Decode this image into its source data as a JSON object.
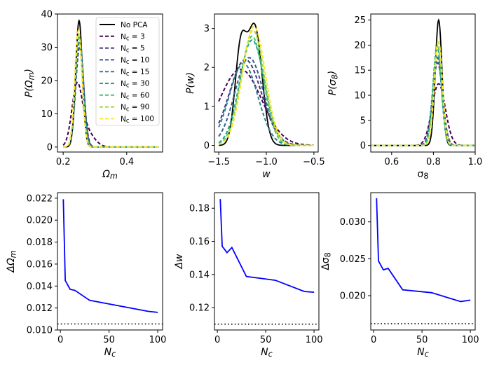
{
  "chart_data": [
    {
      "type": "line",
      "panel": "top-left",
      "xlabel": "Ω_{m}",
      "ylabel": "P(Ω_{m})",
      "xlim": [
        0.182,
        0.513
      ],
      "ylim": [
        -1.5,
        40
      ],
      "xticks": [
        0.2,
        0.4
      ],
      "yticks": [
        0,
        10,
        20,
        30,
        40
      ],
      "xtick_labels": [
        "0.2",
        "0.4"
      ],
      "ytick_labels": [
        "0",
        "10",
        "20",
        "30",
        "40"
      ],
      "x_range": [
        0.2,
        0.5
      ],
      "legend": {
        "placement": "top-right"
      },
      "series": [
        {
          "name": "No PCA",
          "color": "#000000",
          "style": "solid",
          "components": [
            {
              "mu": 0.25,
              "sigma": 0.0105,
              "amp": 38
            }
          ]
        },
        {
          "name": "N_{c} = 3",
          "color": "#440154",
          "style": "dashed",
          "components": [
            {
              "mu": 0.243,
              "sigma": 0.016,
              "amp": 16.5
            },
            {
              "mu": 0.27,
              "sigma": 0.025,
              "amp": 5
            }
          ]
        },
        {
          "name": "N_{c} = 5",
          "color": "#46327e",
          "style": "dashed",
          "components": [
            {
              "mu": 0.252,
              "sigma": 0.0128,
              "amp": 30
            }
          ]
        },
        {
          "name": "N_{c} = 10",
          "color": "#365c8d",
          "style": "dashed",
          "components": [
            {
              "mu": 0.252,
              "sigma": 0.0122,
              "amp": 32
            }
          ]
        },
        {
          "name": "N_{c} = 15",
          "color": "#277f8e",
          "style": "dashed",
          "components": [
            {
              "mu": 0.251,
              "sigma": 0.012,
              "amp": 33
            }
          ]
        },
        {
          "name": "N_{c} = 30",
          "color": "#1fa187",
          "style": "dashed",
          "components": [
            {
              "mu": 0.25,
              "sigma": 0.0118,
              "amp": 33
            }
          ]
        },
        {
          "name": "N_{c} = 60",
          "color": "#4ac16d",
          "style": "dashed",
          "components": [
            {
              "mu": 0.249,
              "sigma": 0.0116,
              "amp": 34
            }
          ]
        },
        {
          "name": "N_{c} = 90",
          "color": "#a0da39",
          "style": "dashed",
          "components": [
            {
              "mu": 0.249,
              "sigma": 0.0115,
              "amp": 34
            }
          ]
        },
        {
          "name": "N_{c} = 100",
          "color": "#fde725",
          "style": "dashed",
          "components": [
            {
              "mu": 0.248,
              "sigma": 0.0114,
              "amp": 35
            }
          ]
        }
      ]
    },
    {
      "type": "line",
      "panel": "top-middle",
      "xlabel": "w",
      "ylabel": "P(w)",
      "xlim": [
        -1.545,
        -0.455
      ],
      "ylim": [
        -0.17,
        3.37
      ],
      "xticks": [
        -1.5,
        -1.0,
        -0.5
      ],
      "yticks": [
        0,
        1,
        2,
        3
      ],
      "xtick_labels": [
        "−1.5",
        "−1.0",
        "−0.5"
      ],
      "ytick_labels": [
        "0",
        "1",
        "2",
        "3"
      ],
      "x_range": [
        -1.5,
        -0.5
      ],
      "series": [
        {
          "name": "No PCA",
          "color": "#000000",
          "style": "solid",
          "components": [
            {
              "mu": -1.27,
              "sigma": 0.06,
              "amp": 2.4
            },
            {
              "mu": -1.12,
              "sigma": 0.075,
              "amp": 3.0
            }
          ]
        },
        {
          "name": "N_{c} = 3",
          "color": "#440154",
          "style": "dashed",
          "components": [
            {
              "mu": -1.27,
              "sigma": 0.22,
              "amp": 1.95
            }
          ]
        },
        {
          "name": "N_{c} = 5",
          "color": "#46327e",
          "style": "dashed",
          "components": [
            {
              "mu": -1.22,
              "sigma": 0.17,
              "amp": 2.2
            }
          ]
        },
        {
          "name": "N_{c} = 10",
          "color": "#365c8d",
          "style": "dashed",
          "components": [
            {
              "mu": -1.18,
              "sigma": 0.15,
              "amp": 2.25
            }
          ]
        },
        {
          "name": "N_{c} = 15",
          "color": "#277f8e",
          "style": "dashed",
          "components": [
            {
              "mu": -1.24,
              "sigma": 0.15,
              "amp": 2.1
            }
          ]
        },
        {
          "name": "N_{c} = 30",
          "color": "#1fa187",
          "style": "dashed",
          "components": [
            {
              "mu": -1.15,
              "sigma": 0.13,
              "amp": 2.7
            }
          ]
        },
        {
          "name": "N_{c} = 60",
          "color": "#4ac16d",
          "style": "dashed",
          "components": [
            {
              "mu": -1.15,
              "sigma": 0.12,
              "amp": 2.8
            }
          ]
        },
        {
          "name": "N_{c} = 90",
          "color": "#a0da39",
          "style": "dashed",
          "components": [
            {
              "mu": -1.14,
              "sigma": 0.12,
              "amp": 2.95
            }
          ]
        },
        {
          "name": "N_{c} = 100",
          "color": "#fde725",
          "style": "dashed",
          "components": [
            {
              "mu": -1.13,
              "sigma": 0.12,
              "amp": 3.05
            }
          ]
        }
      ]
    },
    {
      "type": "line",
      "panel": "top-right",
      "xlabel": "σ_{8}",
      "ylabel": "P(σ_{8})",
      "xlim": [
        0.5,
        1.0
      ],
      "ylim": [
        -1.3,
        26.2
      ],
      "xticks": [
        0.6,
        0.8,
        1.0
      ],
      "yticks": [
        0,
        5,
        10,
        15,
        20,
        25
      ],
      "xtick_labels": [
        "0.6",
        "0.8",
        "1.0"
      ],
      "ytick_labels": [
        "0",
        "5",
        "10",
        "15",
        "20",
        "25"
      ],
      "x_range": [
        0.5,
        1.0
      ],
      "series": [
        {
          "name": "No PCA",
          "color": "#000000",
          "style": "solid",
          "components": [
            {
              "mu": 0.825,
              "sigma": 0.016,
              "amp": 25
            }
          ]
        },
        {
          "name": "N_{c} = 3",
          "color": "#440154",
          "style": "dashed",
          "components": [
            {
              "mu": 0.825,
              "sigma": 0.032,
              "amp": 12.3
            }
          ]
        },
        {
          "name": "N_{c} = 5",
          "color": "#46327e",
          "style": "dashed",
          "components": [
            {
              "mu": 0.82,
              "sigma": 0.024,
              "amp": 16.5
            }
          ]
        },
        {
          "name": "N_{c} = 10",
          "color": "#365c8d",
          "style": "dashed",
          "components": [
            {
              "mu": 0.82,
              "sigma": 0.023,
              "amp": 17.5
            }
          ]
        },
        {
          "name": "N_{c} = 15",
          "color": "#277f8e",
          "style": "dashed",
          "components": [
            {
              "mu": 0.818,
              "sigma": 0.022,
              "amp": 18
            }
          ]
        },
        {
          "name": "N_{c} = 30",
          "color": "#1fa187",
          "style": "dashed",
          "components": [
            {
              "mu": 0.818,
              "sigma": 0.02,
              "amp": 19.8
            }
          ]
        },
        {
          "name": "N_{c} = 60",
          "color": "#4ac16d",
          "style": "dashed",
          "components": [
            {
              "mu": 0.82,
              "sigma": 0.02,
              "amp": 20
            }
          ]
        },
        {
          "name": "N_{c} = 90",
          "color": "#a0da39",
          "style": "dashed",
          "components": [
            {
              "mu": 0.822,
              "sigma": 0.019,
              "amp": 20.5
            }
          ]
        },
        {
          "name": "N_{c} = 100",
          "color": "#fde725",
          "style": "dashed",
          "components": [
            {
              "mu": 0.824,
              "sigma": 0.019,
              "amp": 21
            }
          ]
        }
      ]
    },
    {
      "type": "line",
      "panel": "bottom-left",
      "xlabel": "N_{c}",
      "ylabel": "ΔΩ_{m}",
      "xlim": [
        -3,
        105
      ],
      "ylim": [
        0.01,
        0.0225
      ],
      "xticks": [
        0,
        50,
        100
      ],
      "yticks": [
        0.01,
        0.012,
        0.014,
        0.016,
        0.018,
        0.02,
        0.022
      ],
      "xtick_labels": [
        "0",
        "50",
        "100"
      ],
      "ytick_labels": [
        "0.010",
        "0.012",
        "0.014",
        "0.016",
        "0.018",
        "0.020",
        "0.022"
      ],
      "x": [
        3,
        5,
        10,
        15,
        30,
        60,
        90,
        100
      ],
      "y": [
        0.0219,
        0.0145,
        0.0137,
        0.0136,
        0.0127,
        0.0122,
        0.0117,
        0.0116
      ],
      "line_color": "#0000ff",
      "baseline": {
        "label": "No PCA",
        "value": 0.01055,
        "color": "#000000",
        "style": "dotted"
      }
    },
    {
      "type": "line",
      "panel": "bottom-middle",
      "xlabel": "N_{c}",
      "ylabel": "Δw",
      "xlim": [
        -3,
        105
      ],
      "ylim": [
        0.1065,
        0.1894
      ],
      "xticks": [
        0,
        50,
        100
      ],
      "yticks": [
        0.12,
        0.14,
        0.16,
        0.18
      ],
      "xtick_labels": [
        "0",
        "50",
        "100"
      ],
      "ytick_labels": [
        "0.12",
        "0.14",
        "0.16",
        "0.18"
      ],
      "x": [
        3,
        5,
        10,
        15,
        30,
        60,
        90,
        100
      ],
      "y": [
        0.1855,
        0.157,
        0.1532,
        0.1563,
        0.1388,
        0.1365,
        0.1297,
        0.1293
      ],
      "line_color": "#0000ff",
      "baseline": {
        "label": "No PCA",
        "value": 0.11,
        "color": "#000000",
        "style": "dotted"
      }
    },
    {
      "type": "line",
      "panel": "bottom-right",
      "xlabel": "N_{c}",
      "ylabel": "Δσ_{8}",
      "xlim": [
        -3,
        105
      ],
      "ylim": [
        0.01535,
        0.03396
      ],
      "xticks": [
        0,
        50,
        100
      ],
      "yticks": [
        0.02,
        0.025,
        0.03
      ],
      "xtick_labels": [
        "0",
        "50",
        "100"
      ],
      "ytick_labels": [
        "0.020",
        "0.025",
        "0.030"
      ],
      "x": [
        3,
        5,
        10,
        15,
        30,
        60,
        90,
        100
      ],
      "y": [
        0.0332,
        0.0247,
        0.0235,
        0.0237,
        0.0208,
        0.0204,
        0.0192,
        0.0194
      ],
      "line_color": "#0000ff",
      "baseline": {
        "label": "No PCA",
        "value": 0.0162,
        "color": "#000000",
        "style": "dotted"
      }
    }
  ]
}
